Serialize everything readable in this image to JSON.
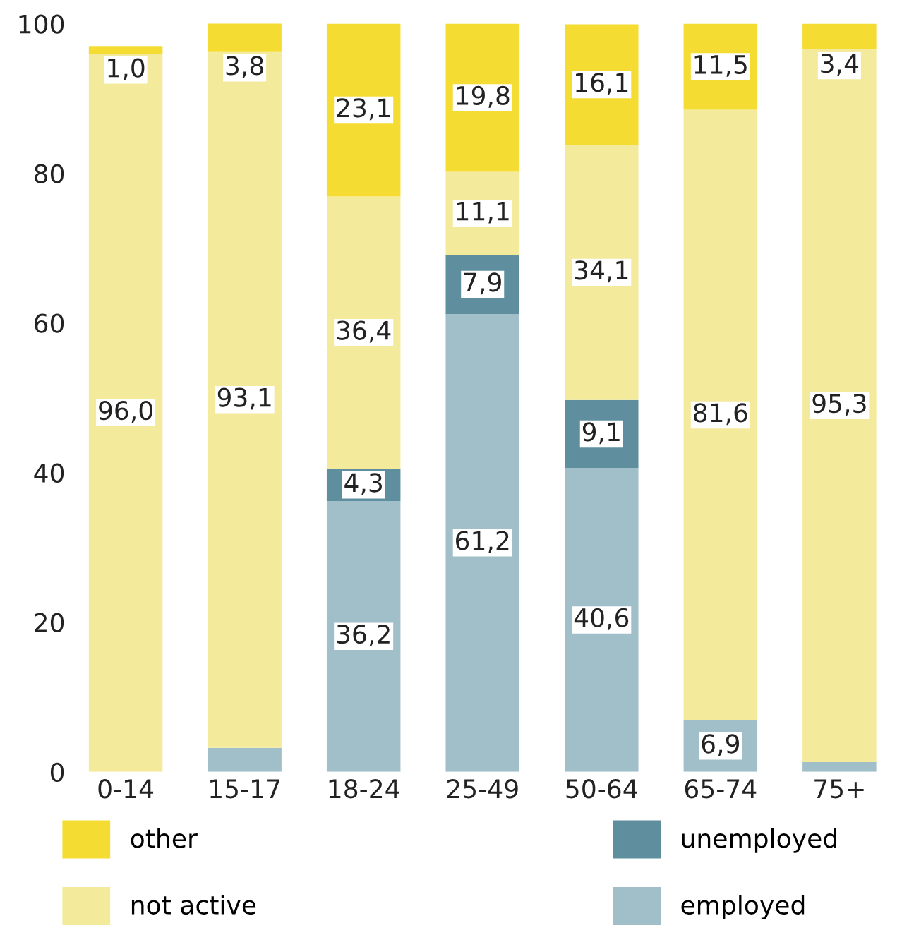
{
  "chart_data": {
    "type": "bar",
    "stacked": true,
    "categories": [
      "0-14",
      "15-17",
      "18-24",
      "25-49",
      "50-64",
      "65-74",
      "75+"
    ],
    "series": [
      {
        "name": "employed",
        "color": "#a1bfc9",
        "values": [
          null,
          3.2,
          36.2,
          61.2,
          40.6,
          6.9,
          1.3
        ],
        "value_labels": [
          null,
          null,
          "36,2",
          "61,2",
          "40,6",
          "6,9",
          null
        ]
      },
      {
        "name": "unemployed",
        "color": "#5f8f9e",
        "values": [
          null,
          null,
          4.3,
          7.9,
          9.1,
          null,
          null
        ],
        "value_labels": [
          null,
          null,
          "4,3",
          "7,9",
          "9,1",
          null,
          null
        ]
      },
      {
        "name": "not active",
        "color": "#f3ea9c",
        "values": [
          96.0,
          93.1,
          36.4,
          11.1,
          34.1,
          81.6,
          95.3
        ],
        "value_labels": [
          "96,0",
          "93,1",
          "36,4",
          "11,1",
          "34,1",
          "81,6",
          "95,3"
        ]
      },
      {
        "name": "other",
        "color": "#f5dc32",
        "values": [
          1.0,
          3.8,
          23.1,
          19.8,
          16.1,
          11.5,
          3.4
        ],
        "value_labels": [
          "1,0",
          "3,8",
          "23,1",
          "19,8",
          "16,1",
          "11,5",
          "3,4"
        ]
      }
    ],
    "ylim": [
      0,
      100
    ],
    "yticks": [
      0,
      20,
      40,
      60,
      80,
      100
    ],
    "grid": false,
    "legend": "bottom"
  }
}
